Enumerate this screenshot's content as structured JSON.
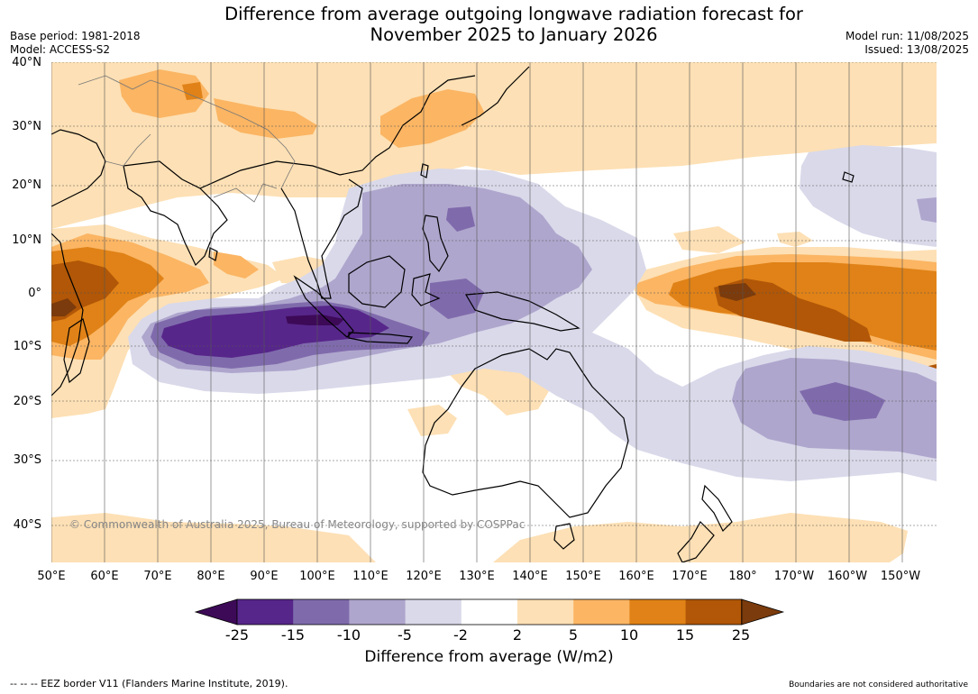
{
  "title_line1": "Difference from average outgoing longwave radiation forecast for",
  "title_line2": "November 2025 to January 2026",
  "base_period": "Base period: 1981-2018",
  "model": "Model: ACCESS-S2",
  "model_run": "Model run: 11/08/2025",
  "issued": "Issued: 13/08/2025",
  "copyright": "© Commonwealth of Australia 2025, Bureau of Meteorology, supported by COSPPac",
  "lat_labels": [
    "40°N",
    "30°N",
    "20°N",
    "10°N",
    "0°",
    "10°S",
    "20°S",
    "30°S",
    "40°S"
  ],
  "lon_labels": [
    "50°E",
    "60°E",
    "70°E",
    "80°E",
    "90°E",
    "100°E",
    "110°E",
    "120°E",
    "130°E",
    "140°E",
    "150°E",
    "160°E",
    "170°E",
    "180°",
    "170°W",
    "160°W",
    "150°W"
  ],
  "colorbar": {
    "title": "Difference from average (W/m2)",
    "ticks": [
      "-25",
      "-15",
      "-10",
      "-5",
      "-2",
      "2",
      "5",
      "10",
      "15",
      "25"
    ],
    "colors": [
      "#3d0a58",
      "#57268a",
      "#7f6bac",
      "#afa6cd",
      "#d9d9ea",
      "#ffffff",
      "#fde0b5",
      "#fbb563",
      "#e08217",
      "#b15707",
      "#7b3b0c"
    ]
  },
  "footer_left": "-- -- -- EEZ border V11 (Flanders Marine Institute, 2019).",
  "footer_right": "Boundaries are not considered authoritative"
}
